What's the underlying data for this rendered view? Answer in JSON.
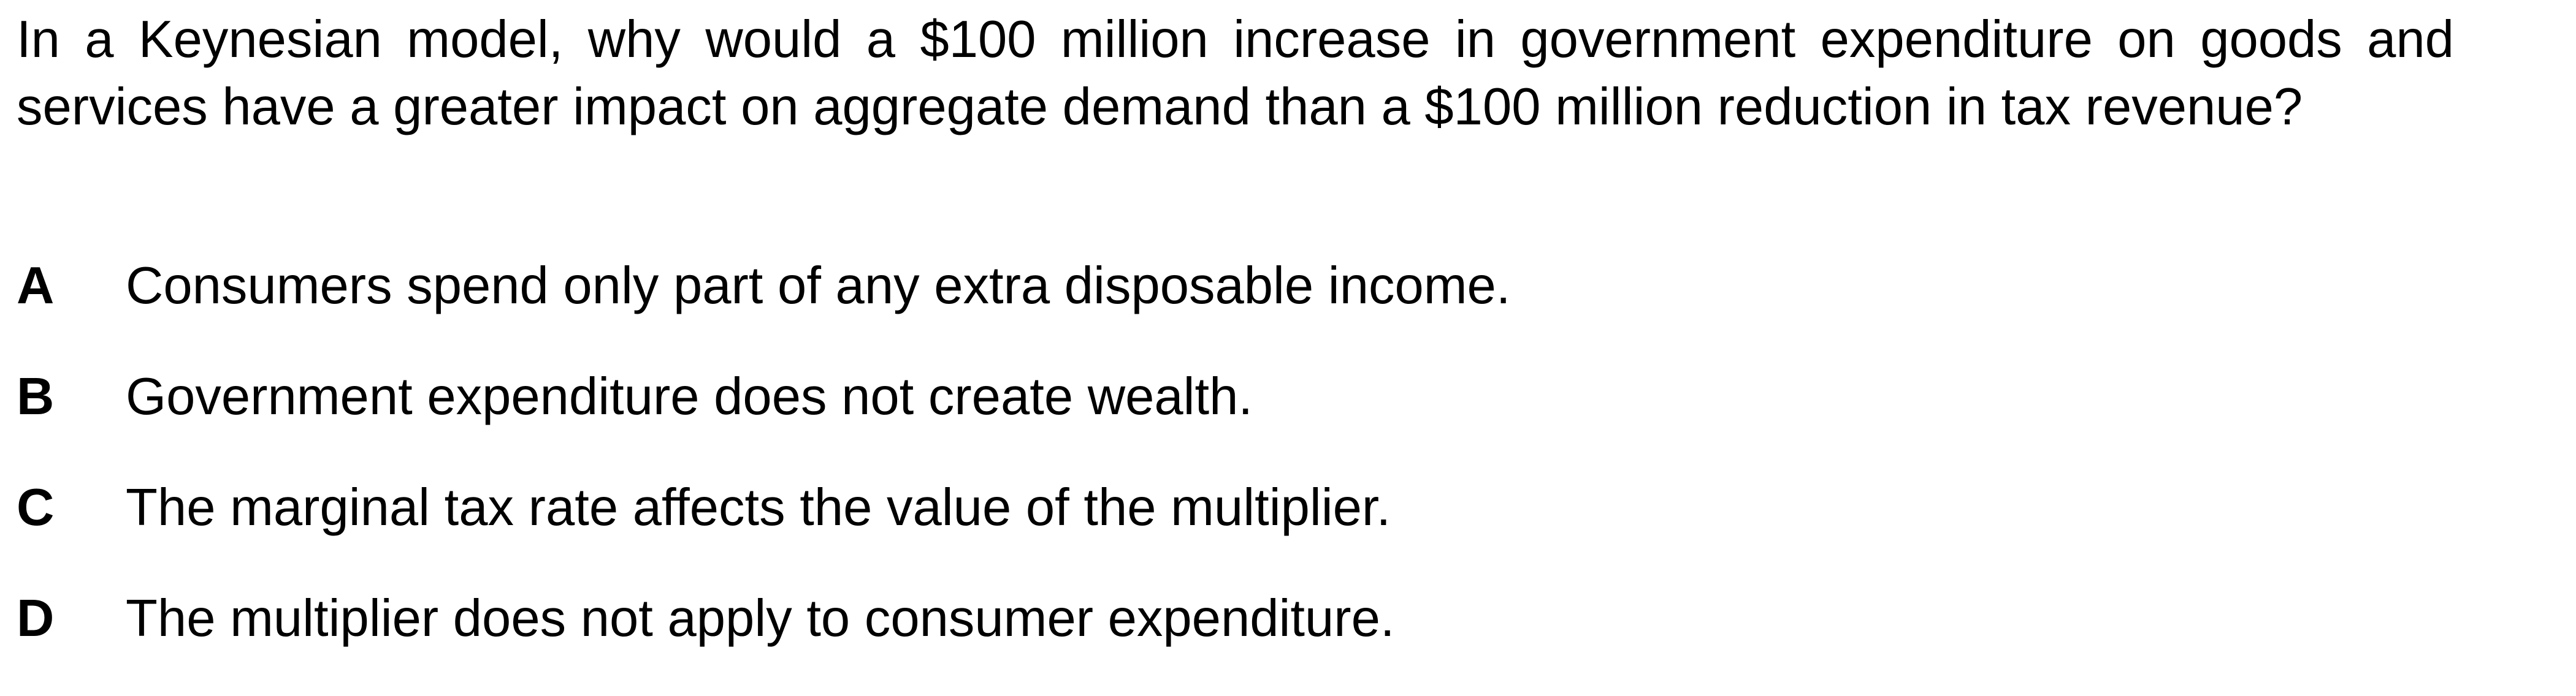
{
  "question": {
    "text": "In a Keynesian model, why would a $100 million increase in government expenditure on goods and services have a greater impact on aggregate demand than a $100 million reduction in tax revenue?"
  },
  "options": [
    {
      "letter": "A",
      "text": "Consumers spend only part of any extra disposable income."
    },
    {
      "letter": "B",
      "text": "Government expenditure does not create wealth."
    },
    {
      "letter": "C",
      "text": "The marginal tax rate affects the value of the multiplier."
    },
    {
      "letter": "D",
      "text": "The multiplier does not apply to consumer expenditure."
    }
  ]
}
